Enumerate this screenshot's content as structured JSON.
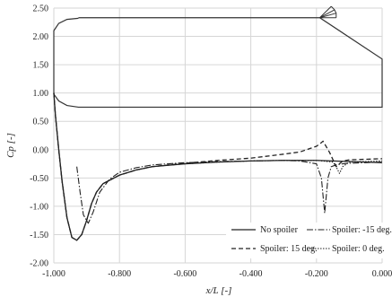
{
  "chart_data": {
    "type": "line",
    "xlabel": "x/L [-]",
    "ylabel": "Cp [-]",
    "xlim": [
      -1.0,
      0.0
    ],
    "ylim": [
      -2.0,
      2.5
    ],
    "x_ticks": [
      "-1.000",
      "-0.800",
      "-0.600",
      "-0.400",
      "-0.200",
      "0.000"
    ],
    "y_ticks": [
      "2.50",
      "2.00",
      "1.50",
      "1.00",
      "0.50",
      "0.00",
      "-0.50",
      "-1.00",
      "-1.50",
      "-2.00"
    ],
    "x_tick_values": [
      -1.0,
      -0.8,
      -0.6,
      -0.4,
      -0.2,
      0.0
    ],
    "y_tick_values": [
      2.5,
      2.0,
      1.5,
      1.0,
      0.5,
      0.0,
      -0.5,
      -1.0,
      -1.5,
      -2.0
    ],
    "grid": true,
    "legend_position": "bottom-right",
    "outline": {
      "points": [
        [
          -0.925,
          2.32
        ],
        [
          -0.96,
          2.3
        ],
        [
          -0.985,
          2.23
        ],
        [
          -1.0,
          2.1
        ],
        [
          -1.0,
          0.98
        ],
        [
          -0.985,
          0.86
        ],
        [
          -0.96,
          0.78
        ],
        [
          -0.925,
          0.75
        ],
        [
          0.0,
          0.75
        ],
        [
          0.0,
          1.6
        ],
        [
          -0.19,
          2.33
        ],
        [
          -0.925,
          2.33
        ]
      ],
      "spoiler_fan": {
        "hinge": [
          -0.19,
          2.33
        ],
        "tips": [
          [
            -0.155,
            2.53
          ],
          [
            -0.145,
            2.47
          ],
          [
            -0.14,
            2.41
          ],
          [
            -0.14,
            2.33
          ]
        ]
      }
    },
    "series": [
      {
        "name": "No spoiler",
        "style": "solid",
        "x": [
          -1.0,
          -0.995,
          -0.985,
          -0.975,
          -0.96,
          -0.945,
          -0.93,
          -0.915,
          -0.9,
          -0.885,
          -0.87,
          -0.85,
          -0.8,
          -0.75,
          -0.7,
          -0.6,
          -0.5,
          -0.4,
          -0.3,
          -0.2,
          -0.15,
          -0.1,
          -0.05,
          0.0
        ],
        "y": [
          1.0,
          0.6,
          0.0,
          -0.55,
          -1.2,
          -1.55,
          -1.6,
          -1.5,
          -1.25,
          -0.95,
          -0.75,
          -0.6,
          -0.45,
          -0.36,
          -0.3,
          -0.25,
          -0.22,
          -0.2,
          -0.19,
          -0.19,
          -0.2,
          -0.21,
          -0.22,
          -0.23
        ]
      },
      {
        "name": "Spoiler: 15 deg.",
        "style": "dashed",
        "x": [
          -1.0,
          -0.995,
          -0.985,
          -0.975,
          -0.96,
          -0.945,
          -0.93,
          -0.915,
          -0.9,
          -0.885,
          -0.87,
          -0.85,
          -0.8,
          -0.75,
          -0.7,
          -0.6,
          -0.5,
          -0.4,
          -0.3,
          -0.25,
          -0.22,
          -0.2,
          -0.19,
          -0.18,
          -0.16,
          -0.14,
          -0.12,
          -0.1,
          -0.05,
          0.0
        ],
        "y": [
          1.0,
          0.6,
          0.0,
          -0.55,
          -1.2,
          -1.55,
          -1.6,
          -1.5,
          -1.25,
          -0.95,
          -0.75,
          -0.6,
          -0.45,
          -0.36,
          -0.3,
          -0.24,
          -0.19,
          -0.15,
          -0.08,
          -0.04,
          0.02,
          0.06,
          0.1,
          0.15,
          -0.05,
          -0.3,
          -0.2,
          -0.18,
          -0.17,
          -0.16
        ]
      },
      {
        "name": "Spoiler: -15 deg.",
        "style": "dashdot",
        "x": [
          -0.93,
          -0.92,
          -0.91,
          -0.895,
          -0.88,
          -0.86,
          -0.83,
          -0.8,
          -0.75,
          -0.7,
          -0.6,
          -0.5,
          -0.4,
          -0.3,
          -0.25,
          -0.2,
          -0.185,
          -0.175,
          -0.165,
          -0.155,
          -0.14,
          -0.12,
          -0.1,
          -0.05,
          0.0
        ],
        "y": [
          -0.3,
          -0.75,
          -1.15,
          -1.3,
          -1.1,
          -0.75,
          -0.52,
          -0.4,
          -0.32,
          -0.27,
          -0.23,
          -0.21,
          -0.2,
          -0.19,
          -0.2,
          -0.25,
          -0.5,
          -1.12,
          -0.5,
          -0.3,
          -0.27,
          -0.25,
          -0.24,
          -0.23,
          -0.22
        ]
      },
      {
        "name": "Spoiler: 0 deg.",
        "style": "dotted",
        "x": [
          -1.0,
          -0.995,
          -0.985,
          -0.975,
          -0.96,
          -0.945,
          -0.93,
          -0.915,
          -0.9,
          -0.885,
          -0.87,
          -0.85,
          -0.8,
          -0.75,
          -0.7,
          -0.6,
          -0.5,
          -0.4,
          -0.3,
          -0.2,
          -0.15,
          -0.14,
          -0.13,
          -0.12,
          -0.1,
          -0.05,
          0.0
        ],
        "y": [
          1.0,
          0.6,
          0.0,
          -0.55,
          -1.2,
          -1.55,
          -1.6,
          -1.5,
          -1.25,
          -0.95,
          -0.75,
          -0.6,
          -0.45,
          -0.36,
          -0.3,
          -0.25,
          -0.22,
          -0.2,
          -0.19,
          -0.19,
          -0.22,
          -0.3,
          -0.42,
          -0.3,
          -0.22,
          -0.21,
          -0.2
        ]
      }
    ]
  }
}
